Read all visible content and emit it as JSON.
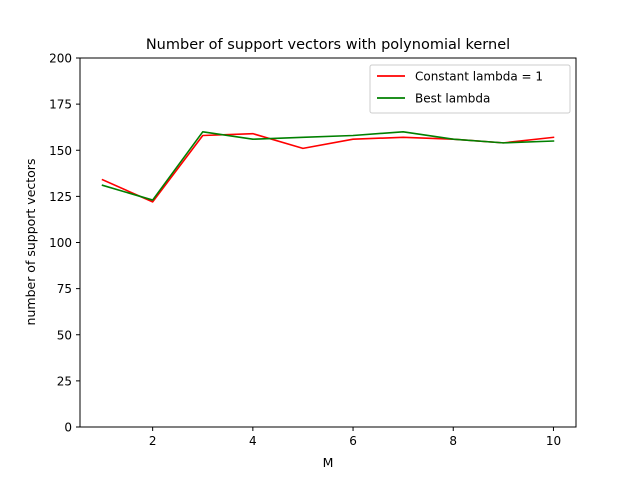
{
  "chart_data": {
    "type": "line",
    "title": "Number of support vectors with polynomial kernel",
    "xlabel": "M",
    "ylabel": "number of support vectors",
    "x": [
      1,
      2,
      3,
      4,
      5,
      6,
      7,
      8,
      9,
      10
    ],
    "xlim": [
      0.55,
      10.45
    ],
    "ylim": [
      0,
      200
    ],
    "xticks": [
      2,
      4,
      6,
      8,
      10
    ],
    "yticks": [
      0,
      25,
      50,
      75,
      100,
      125,
      150,
      175,
      200
    ],
    "grid": false,
    "legend_position": "top-right",
    "series": [
      {
        "name": "Constant lambda = 1",
        "color": "#ff0000",
        "values": [
          134,
          122,
          158,
          159,
          151,
          156,
          157,
          156,
          154,
          157
        ]
      },
      {
        "name": "Best lambda",
        "color": "#008000",
        "values": [
          131,
          123,
          160,
          156,
          157,
          158,
          160,
          156,
          154,
          155
        ]
      }
    ]
  }
}
